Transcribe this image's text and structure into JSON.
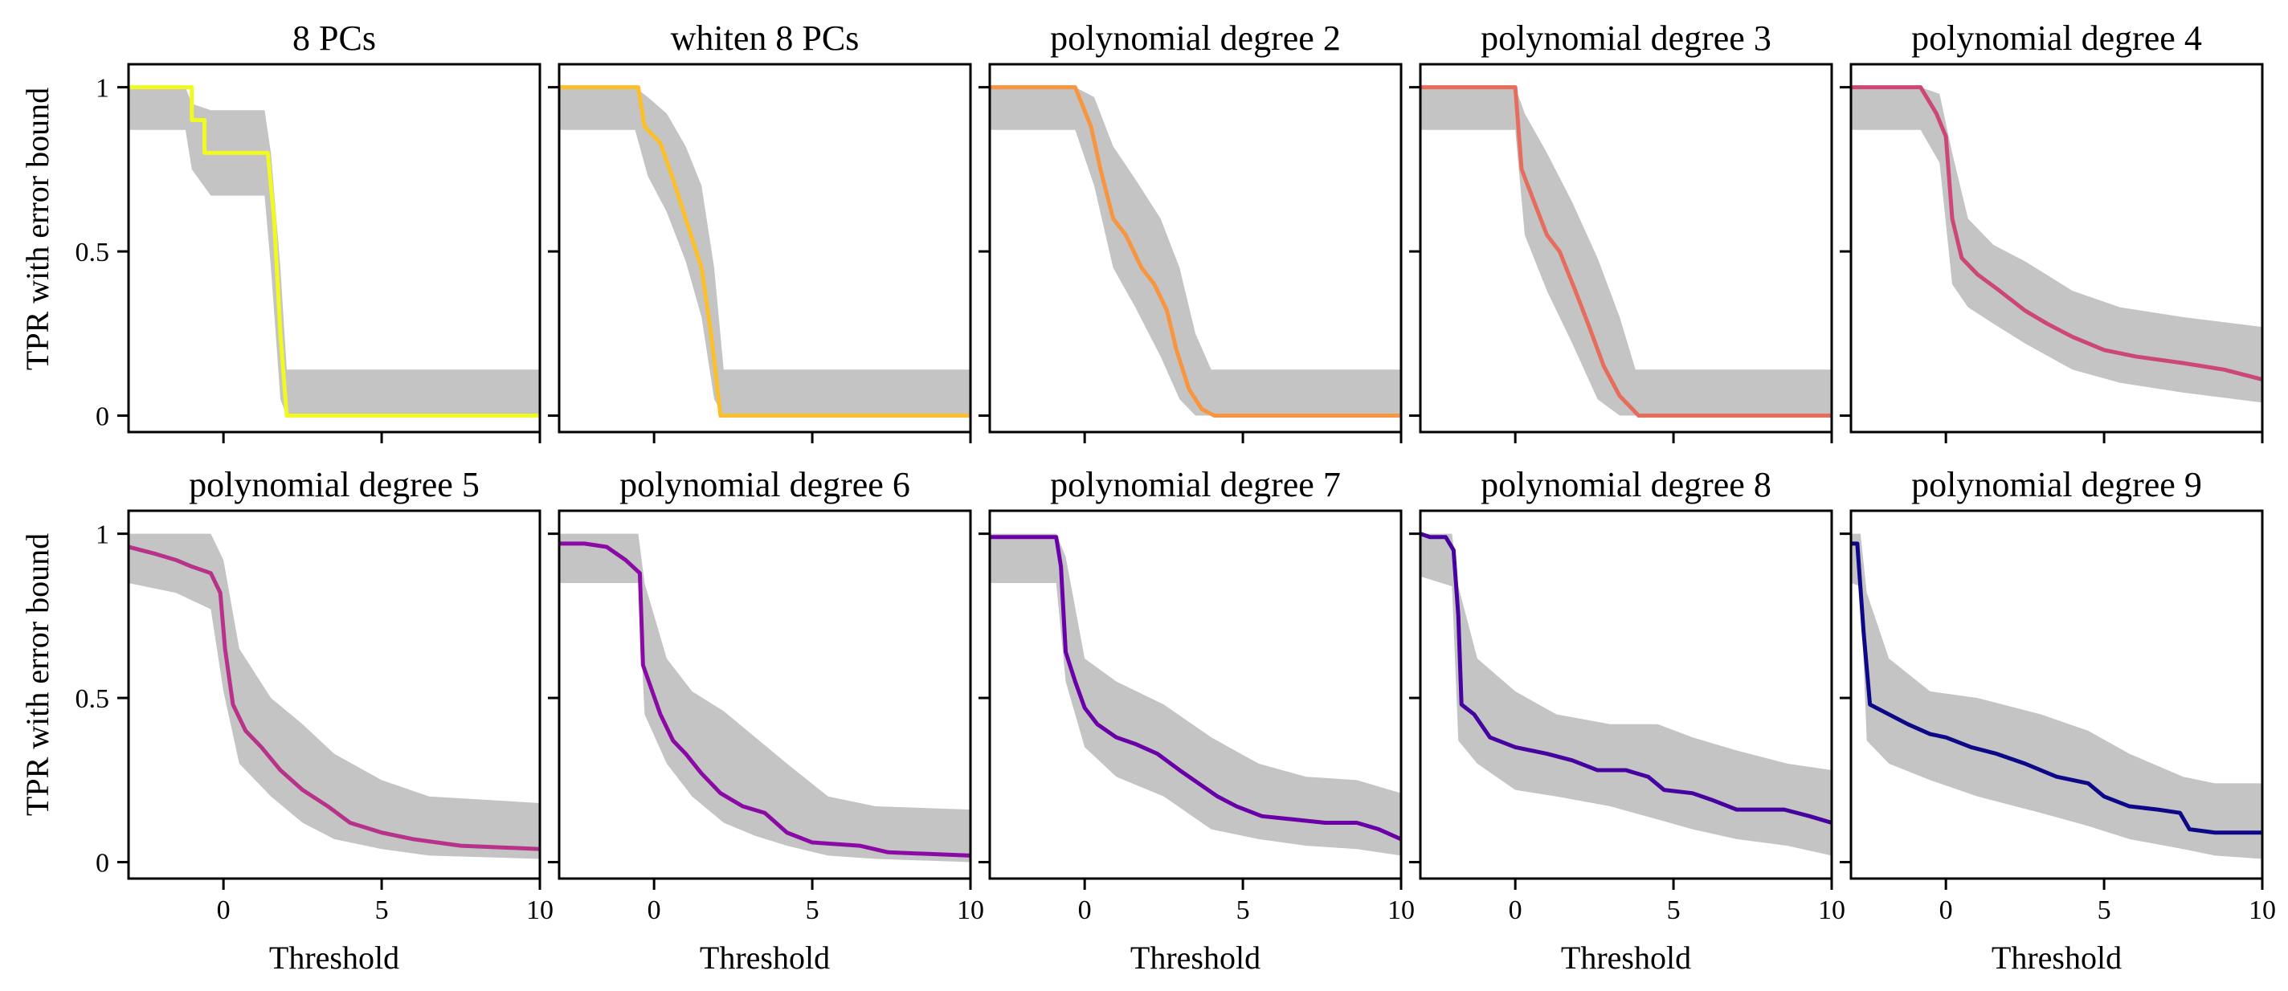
{
  "chart_data": {
    "type": "line",
    "xlabel": "Threshold",
    "ylabel": "TPR with error bound",
    "xlim": [
      -3,
      10
    ],
    "ylim": [
      -0.05,
      1.07
    ],
    "xticks": [
      0,
      5,
      10
    ],
    "yticks": [
      0,
      0.5,
      1
    ],
    "xtick_labels": [
      "0",
      "5",
      "10"
    ],
    "ytick_labels": [
      "0",
      "0.5",
      "1"
    ],
    "band_color": "#c4c4c4",
    "panels": [
      {
        "title": "8 PCs",
        "color": "#f0f921",
        "series": [
          [
            -3,
            1.0
          ],
          [
            -1,
            1.0
          ],
          [
            -1,
            0.9
          ],
          [
            -0.6,
            0.9
          ],
          [
            -0.6,
            0.8
          ],
          [
            1.4,
            0.8
          ],
          [
            1.6,
            0.6
          ],
          [
            1.8,
            0.25
          ],
          [
            2.0,
            0.0
          ],
          [
            10,
            0.0
          ]
        ],
        "band": [
          [
            -3,
            0.87,
            1.0
          ],
          [
            -1.2,
            0.87,
            1.0
          ],
          [
            -1,
            0.75,
            0.95
          ],
          [
            -0.4,
            0.67,
            0.93
          ],
          [
            1.3,
            0.67,
            0.93
          ],
          [
            1.5,
            0.45,
            0.8
          ],
          [
            1.8,
            0.05,
            0.45
          ],
          [
            2.0,
            0.0,
            0.14
          ],
          [
            10,
            0.0,
            0.14
          ]
        ]
      },
      {
        "title": "whiten 8 PCs",
        "color": "#fbbf2b",
        "series": [
          [
            -3,
            1.0
          ],
          [
            -0.5,
            1.0
          ],
          [
            -0.3,
            0.88
          ],
          [
            0.2,
            0.83
          ],
          [
            0.6,
            0.72
          ],
          [
            1.0,
            0.6
          ],
          [
            1.5,
            0.45
          ],
          [
            1.8,
            0.25
          ],
          [
            2.1,
            0.0
          ],
          [
            10,
            0.0
          ]
        ],
        "band": [
          [
            -3,
            0.87,
            1.0
          ],
          [
            -0.6,
            0.87,
            1.0
          ],
          [
            -0.2,
            0.73,
            0.97
          ],
          [
            0.4,
            0.62,
            0.92
          ],
          [
            1.0,
            0.47,
            0.82
          ],
          [
            1.5,
            0.3,
            0.7
          ],
          [
            1.9,
            0.05,
            0.45
          ],
          [
            2.2,
            0.0,
            0.14
          ],
          [
            10,
            0.0,
            0.14
          ]
        ]
      },
      {
        "title": "polynomial degree 2",
        "color": "#f89540",
        "series": [
          [
            -3,
            1.0
          ],
          [
            -0.3,
            1.0
          ],
          [
            0.2,
            0.88
          ],
          [
            0.5,
            0.75
          ],
          [
            0.9,
            0.6
          ],
          [
            1.3,
            0.55
          ],
          [
            1.8,
            0.45
          ],
          [
            2.2,
            0.4
          ],
          [
            2.6,
            0.32
          ],
          [
            2.9,
            0.2
          ],
          [
            3.3,
            0.08
          ],
          [
            3.7,
            0.02
          ],
          [
            4.1,
            0.0
          ],
          [
            10,
            0.0
          ]
        ],
        "band": [
          [
            -3,
            0.87,
            1.0
          ],
          [
            -0.3,
            0.87,
            1.0
          ],
          [
            0.3,
            0.7,
            0.97
          ],
          [
            0.9,
            0.45,
            0.82
          ],
          [
            1.6,
            0.33,
            0.72
          ],
          [
            2.4,
            0.18,
            0.6
          ],
          [
            3.0,
            0.05,
            0.45
          ],
          [
            3.5,
            0.0,
            0.25
          ],
          [
            4.0,
            0.0,
            0.14
          ],
          [
            10,
            0.0,
            0.14
          ]
        ]
      },
      {
        "title": "polynomial degree 3",
        "color": "#e66c5c",
        "series": [
          [
            -3,
            1.0
          ],
          [
            0,
            1.0
          ],
          [
            0.2,
            0.75
          ],
          [
            0.6,
            0.65
          ],
          [
            1.0,
            0.55
          ],
          [
            1.4,
            0.5
          ],
          [
            1.9,
            0.38
          ],
          [
            2.3,
            0.28
          ],
          [
            2.8,
            0.15
          ],
          [
            3.3,
            0.06
          ],
          [
            3.9,
            0.0
          ],
          [
            10,
            0.0
          ]
        ],
        "band": [
          [
            -3,
            0.87,
            1.0
          ],
          [
            0,
            0.87,
            1.0
          ],
          [
            0.3,
            0.55,
            0.92
          ],
          [
            1.0,
            0.38,
            0.8
          ],
          [
            1.8,
            0.22,
            0.65
          ],
          [
            2.6,
            0.05,
            0.48
          ],
          [
            3.3,
            0.0,
            0.3
          ],
          [
            3.8,
            0.0,
            0.14
          ],
          [
            10,
            0.0,
            0.14
          ]
        ]
      },
      {
        "title": "polynomial degree 4",
        "color": "#cc4778",
        "series": [
          [
            -3,
            1.0
          ],
          [
            -0.8,
            1.0
          ],
          [
            -0.3,
            0.92
          ],
          [
            0,
            0.85
          ],
          [
            0.2,
            0.6
          ],
          [
            0.5,
            0.48
          ],
          [
            1.0,
            0.43
          ],
          [
            1.7,
            0.38
          ],
          [
            2.5,
            0.32
          ],
          [
            3.2,
            0.28
          ],
          [
            4.0,
            0.24
          ],
          [
            5.0,
            0.2
          ],
          [
            6.0,
            0.18
          ],
          [
            7.5,
            0.16
          ],
          [
            8.8,
            0.14
          ],
          [
            9.6,
            0.12
          ],
          [
            10,
            0.11
          ]
        ],
        "band": [
          [
            -3,
            0.87,
            1.0
          ],
          [
            -0.8,
            0.87,
            1.0
          ],
          [
            -0.2,
            0.77,
            0.98
          ],
          [
            0.2,
            0.4,
            0.8
          ],
          [
            0.7,
            0.33,
            0.6
          ],
          [
            1.5,
            0.28,
            0.52
          ],
          [
            2.5,
            0.22,
            0.47
          ],
          [
            4.0,
            0.14,
            0.38
          ],
          [
            5.5,
            0.1,
            0.33
          ],
          [
            7.5,
            0.07,
            0.3
          ],
          [
            10,
            0.04,
            0.27
          ]
        ]
      },
      {
        "title": "polynomial degree 5",
        "color": "#b83289",
        "series": [
          [
            -3,
            0.96
          ],
          [
            -2.2,
            0.94
          ],
          [
            -1.5,
            0.92
          ],
          [
            -1.0,
            0.9
          ],
          [
            -0.4,
            0.88
          ],
          [
            -0.1,
            0.82
          ],
          [
            0.05,
            0.65
          ],
          [
            0.3,
            0.48
          ],
          [
            0.7,
            0.4
          ],
          [
            1.2,
            0.35
          ],
          [
            1.8,
            0.28
          ],
          [
            2.5,
            0.22
          ],
          [
            3.3,
            0.17
          ],
          [
            4.0,
            0.12
          ],
          [
            5.0,
            0.09
          ],
          [
            6.0,
            0.07
          ],
          [
            7.5,
            0.05
          ],
          [
            10,
            0.04
          ]
        ],
        "band": [
          [
            -3,
            0.85,
            1.0
          ],
          [
            -1.5,
            0.82,
            1.0
          ],
          [
            -0.4,
            0.77,
            1.0
          ],
          [
            0,
            0.52,
            0.92
          ],
          [
            0.5,
            0.3,
            0.65
          ],
          [
            1.5,
            0.2,
            0.5
          ],
          [
            2.5,
            0.12,
            0.42
          ],
          [
            3.5,
            0.07,
            0.33
          ],
          [
            5.0,
            0.04,
            0.25
          ],
          [
            6.5,
            0.02,
            0.2
          ],
          [
            10,
            0.01,
            0.18
          ]
        ]
      },
      {
        "title": "polynomial degree 6",
        "color": "#8b0aa5",
        "series": [
          [
            -3,
            0.97
          ],
          [
            -2.2,
            0.97
          ],
          [
            -1.5,
            0.96
          ],
          [
            -0.9,
            0.92
          ],
          [
            -0.45,
            0.88
          ],
          [
            -0.35,
            0.6
          ],
          [
            0.2,
            0.45
          ],
          [
            0.6,
            0.37
          ],
          [
            1.0,
            0.33
          ],
          [
            1.5,
            0.27
          ],
          [
            2.1,
            0.21
          ],
          [
            2.8,
            0.17
          ],
          [
            3.5,
            0.15
          ],
          [
            4.2,
            0.09
          ],
          [
            5.0,
            0.06
          ],
          [
            6.5,
            0.05
          ],
          [
            7.4,
            0.03
          ],
          [
            10,
            0.02
          ]
        ],
        "band": [
          [
            -3,
            0.85,
            1.0
          ],
          [
            -0.5,
            0.85,
            1.0
          ],
          [
            -0.3,
            0.45,
            0.85
          ],
          [
            0.4,
            0.3,
            0.62
          ],
          [
            1.2,
            0.2,
            0.52
          ],
          [
            2.2,
            0.12,
            0.46
          ],
          [
            3.2,
            0.08,
            0.38
          ],
          [
            4.2,
            0.05,
            0.3
          ],
          [
            5.5,
            0.02,
            0.2
          ],
          [
            7.0,
            0.01,
            0.17
          ],
          [
            10,
            0.0,
            0.16
          ]
        ]
      },
      {
        "title": "polynomial degree 7",
        "color": "#6a00a8",
        "series": [
          [
            -3,
            0.99
          ],
          [
            -0.9,
            0.99
          ],
          [
            -0.75,
            0.9
          ],
          [
            -0.6,
            0.64
          ],
          [
            -0.3,
            0.55
          ],
          [
            0,
            0.47
          ],
          [
            0.4,
            0.42
          ],
          [
            1.0,
            0.38
          ],
          [
            1.6,
            0.36
          ],
          [
            2.3,
            0.33
          ],
          [
            3.0,
            0.28
          ],
          [
            3.6,
            0.24
          ],
          [
            4.2,
            0.2
          ],
          [
            4.8,
            0.17
          ],
          [
            5.6,
            0.14
          ],
          [
            6.6,
            0.13
          ],
          [
            7.6,
            0.12
          ],
          [
            8.6,
            0.12
          ],
          [
            9.3,
            0.1
          ],
          [
            10,
            0.07
          ]
        ],
        "band": [
          [
            -3,
            0.85,
            1.0
          ],
          [
            -0.9,
            0.85,
            1.0
          ],
          [
            -0.6,
            0.55,
            0.93
          ],
          [
            0,
            0.35,
            0.62
          ],
          [
            1.0,
            0.26,
            0.55
          ],
          [
            2.5,
            0.2,
            0.48
          ],
          [
            4.0,
            0.1,
            0.38
          ],
          [
            5.5,
            0.07,
            0.3
          ],
          [
            7.0,
            0.05,
            0.26
          ],
          [
            8.6,
            0.04,
            0.25
          ],
          [
            10,
            0.02,
            0.21
          ]
        ]
      },
      {
        "title": "polynomial degree 8",
        "color": "#46039f",
        "series": [
          [
            -3,
            1.0
          ],
          [
            -2.7,
            0.99
          ],
          [
            -2.2,
            0.99
          ],
          [
            -1.95,
            0.95
          ],
          [
            -1.8,
            0.75
          ],
          [
            -1.7,
            0.48
          ],
          [
            -1.3,
            0.45
          ],
          [
            -0.8,
            0.38
          ],
          [
            0,
            0.35
          ],
          [
            1.0,
            0.33
          ],
          [
            1.8,
            0.31
          ],
          [
            2.6,
            0.28
          ],
          [
            3.5,
            0.28
          ],
          [
            4.2,
            0.26
          ],
          [
            4.7,
            0.22
          ],
          [
            5.6,
            0.21
          ],
          [
            6.2,
            0.19
          ],
          [
            7.0,
            0.16
          ],
          [
            8.5,
            0.16
          ],
          [
            9.3,
            0.14
          ],
          [
            10,
            0.12
          ]
        ],
        "band": [
          [
            -3,
            0.87,
            1.0
          ],
          [
            -2.0,
            0.84,
            1.0
          ],
          [
            -1.8,
            0.37,
            0.84
          ],
          [
            -1.2,
            0.3,
            0.62
          ],
          [
            0,
            0.22,
            0.52
          ],
          [
            1.3,
            0.2,
            0.45
          ],
          [
            3.0,
            0.17,
            0.42
          ],
          [
            4.5,
            0.13,
            0.42
          ],
          [
            5.6,
            0.1,
            0.38
          ],
          [
            7.0,
            0.07,
            0.34
          ],
          [
            8.6,
            0.05,
            0.3
          ],
          [
            10,
            0.02,
            0.28
          ]
        ]
      },
      {
        "title": "polynomial degree 9",
        "color": "#0d0887",
        "series": [
          [
            -3,
            0.97
          ],
          [
            -2.8,
            0.97
          ],
          [
            -2.6,
            0.7
          ],
          [
            -2.4,
            0.48
          ],
          [
            -1.8,
            0.45
          ],
          [
            -1.2,
            0.42
          ],
          [
            -0.5,
            0.39
          ],
          [
            0,
            0.38
          ],
          [
            0.8,
            0.35
          ],
          [
            1.6,
            0.33
          ],
          [
            2.5,
            0.3
          ],
          [
            3.5,
            0.26
          ],
          [
            4.5,
            0.24
          ],
          [
            5.0,
            0.2
          ],
          [
            5.8,
            0.17
          ],
          [
            6.7,
            0.16
          ],
          [
            7.4,
            0.15
          ],
          [
            7.7,
            0.1
          ],
          [
            8.5,
            0.09
          ],
          [
            10,
            0.09
          ]
        ],
        "band": [
          [
            -3,
            0.85,
            1.0
          ],
          [
            -2.7,
            0.84,
            1.0
          ],
          [
            -2.5,
            0.37,
            0.82
          ],
          [
            -1.8,
            0.3,
            0.62
          ],
          [
            -0.5,
            0.25,
            0.52
          ],
          [
            1.0,
            0.2,
            0.5
          ],
          [
            3.0,
            0.15,
            0.45
          ],
          [
            4.5,
            0.11,
            0.4
          ],
          [
            5.8,
            0.07,
            0.33
          ],
          [
            7.5,
            0.04,
            0.26
          ],
          [
            8.5,
            0.02,
            0.24
          ],
          [
            10,
            0.01,
            0.24
          ]
        ]
      }
    ]
  }
}
